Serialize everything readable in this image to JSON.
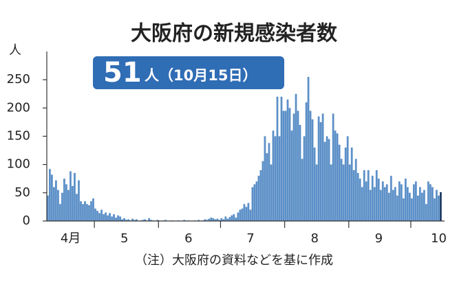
{
  "chart_data": {
    "type": "bar",
    "title": "大阪府の新規感染者数",
    "y_unit": "人",
    "annotation": {
      "value_text": "51",
      "detail_text": "人（10月15日）"
    },
    "note": "（注）大阪府の資料などを基に作成",
    "color": "#5b8fc7",
    "highlight_color": "#1f3b66",
    "box_color": "#2f6db5",
    "ylim": [
      0,
      300
    ],
    "yticks": [
      0,
      50,
      100,
      150,
      200,
      250
    ],
    "grid": false,
    "categories": [
      null,
      null,
      null,
      null,
      null,
      null,
      null,
      null,
      null,
      null,
      null,
      "4月",
      null,
      null,
      null,
      null,
      null,
      null,
      null,
      null,
      null,
      null,
      null,
      null,
      null,
      null,
      null,
      null,
      null,
      null,
      null,
      null,
      null,
      null,
      null,
      null,
      null,
      "5",
      null,
      null,
      null,
      null,
      null,
      null,
      null,
      null,
      null,
      null,
      null,
      null,
      null,
      null,
      null,
      null,
      null,
      null,
      null,
      null,
      null,
      null,
      null,
      null,
      null,
      null,
      null,
      null,
      null,
      null,
      "6",
      null,
      null,
      null,
      null,
      null,
      null,
      null,
      null,
      null,
      null,
      null,
      null,
      null,
      null,
      null,
      null,
      null,
      null,
      null,
      null,
      null,
      null,
      null,
      null,
      null,
      null,
      null,
      null,
      null,
      "7",
      null,
      null,
      null,
      null,
      null,
      null,
      null,
      null,
      null,
      null,
      null,
      null,
      null,
      null,
      null,
      null,
      null,
      null,
      null,
      null,
      null,
      null,
      null,
      null,
      null,
      null,
      null,
      null,
      null,
      null,
      "8",
      null,
      null,
      null,
      null,
      null,
      null,
      null,
      null,
      null,
      null,
      null,
      null,
      null,
      null,
      null,
      null,
      null,
      null,
      null,
      null,
      null,
      null,
      null,
      null,
      null,
      null,
      null,
      null,
      null,
      null,
      "9",
      null,
      null,
      null,
      null,
      null,
      null,
      null,
      null,
      null,
      null,
      null,
      null,
      null,
      null,
      null,
      null,
      null,
      null,
      null,
      null,
      null,
      null,
      null,
      null,
      null,
      null,
      null,
      null,
      "10",
      null
    ],
    "values": [
      45,
      92,
      82,
      60,
      72,
      55,
      30,
      50,
      75,
      65,
      55,
      88,
      62,
      85,
      48,
      72,
      35,
      30,
      35,
      30,
      28,
      35,
      40,
      22,
      18,
      14,
      20,
      12,
      15,
      10,
      14,
      8,
      12,
      6,
      10,
      8,
      3,
      5,
      2,
      3,
      1,
      4,
      2,
      3,
      0,
      1,
      2,
      3,
      1,
      5,
      2,
      1,
      0,
      2,
      1,
      0,
      1,
      2,
      0,
      0,
      1,
      0,
      0,
      1,
      0,
      0,
      2,
      0,
      1,
      0,
      0,
      1,
      0,
      2,
      0,
      1,
      3,
      2,
      4,
      6,
      5,
      3,
      4,
      2,
      5,
      3,
      8,
      4,
      7,
      10,
      12,
      6,
      15,
      20,
      22,
      30,
      25,
      32,
      20,
      60,
      65,
      70,
      80,
      90,
      106,
      150,
      120,
      138,
      100,
      160,
      150,
      220,
      150,
      220,
      195,
      195,
      215,
      200,
      160,
      190,
      225,
      195,
      170,
      110,
      150,
      210,
      255,
      195,
      180,
      130,
      100,
      185,
      175,
      190,
      140,
      150,
      145,
      100,
      190,
      160,
      155,
      135,
      110,
      100,
      130,
      150,
      100,
      130,
      90,
      110,
      85,
      75,
      60,
      90,
      70,
      90,
      55,
      80,
      60,
      90,
      75,
      55,
      70,
      60,
      65,
      50,
      80,
      55,
      60,
      45,
      70,
      65,
      40,
      75,
      60,
      50,
      40,
      65,
      70,
      45,
      60,
      50,
      55,
      30,
      70,
      65,
      60,
      40,
      55,
      45,
      51
    ]
  }
}
